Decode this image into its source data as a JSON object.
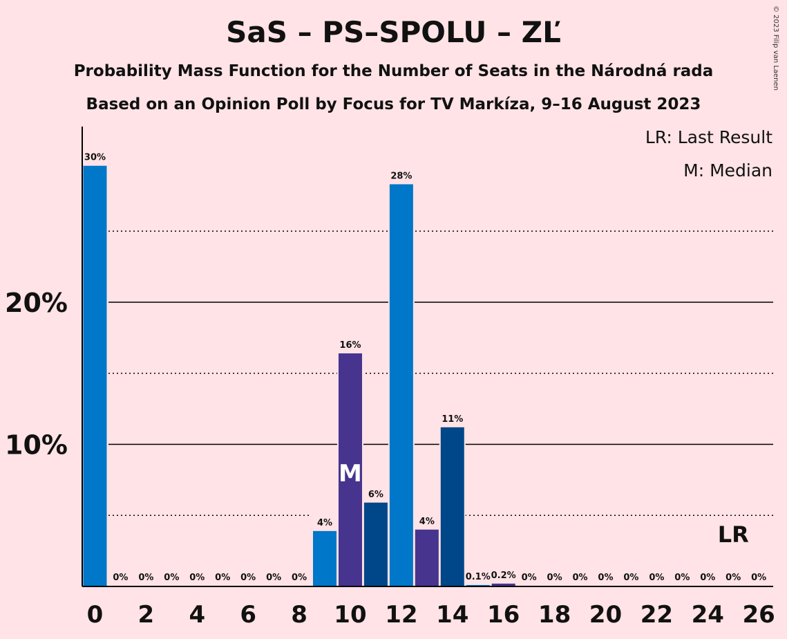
{
  "chart_data": {
    "type": "bar",
    "title": "SaS – PS–SPOLU – ZĽ",
    "subtitle_1": "Probability Mass Function for the Number of Seats in the Národná rada",
    "subtitle_2": "Based on an Opinion Poll by Focus for TV Markíza, 9–16 August 2023",
    "legend": [
      "LR: Last Result",
      "M: Median"
    ],
    "copyright": "© 2023 Filip van Laenen",
    "x": [
      0,
      1,
      2,
      3,
      4,
      5,
      6,
      7,
      8,
      9,
      10,
      11,
      12,
      13,
      14,
      15,
      16,
      17,
      18,
      19,
      20,
      21,
      22,
      23,
      24,
      25,
      26
    ],
    "values": [
      29.6,
      0,
      0,
      0,
      0,
      0,
      0,
      0,
      0,
      3.9,
      16.4,
      5.9,
      28.3,
      4.0,
      11.2,
      0.1,
      0.2,
      0,
      0,
      0,
      0,
      0,
      0,
      0,
      0,
      0,
      0
    ],
    "labels": [
      "30%",
      "0%",
      "0%",
      "0%",
      "0%",
      "0%",
      "0%",
      "0%",
      "0%",
      "4%",
      "16%",
      "6%",
      "28%",
      "4%",
      "11%",
      "0.1%",
      "0.2%",
      "0%",
      "0%",
      "0%",
      "0%",
      "0%",
      "0%",
      "0%",
      "0%",
      "0%",
      "0%"
    ],
    "bar_colors": [
      "#0077C8",
      "#0077C8",
      "#0077C8",
      "#0077C8",
      "#0077C8",
      "#0077C8",
      "#0077C8",
      "#0077C8",
      "#0077C8",
      "#0077C8",
      "#46348E",
      "#00478A",
      "#0077C8",
      "#46348E",
      "#00478A",
      "#0077C8",
      "#46348E",
      "#00478A",
      "#0077C8",
      "#46348E",
      "#00478A",
      "#0077C8",
      "#46348E",
      "#00478A",
      "#0077C8",
      "#46348E",
      "#00478A"
    ],
    "x_tick_labels": [
      "0",
      "2",
      "4",
      "6",
      "8",
      "10",
      "12",
      "14",
      "16",
      "18",
      "20",
      "22",
      "24",
      "26"
    ],
    "y_ticks": [
      {
        "value": 10,
        "label": "10%"
      },
      {
        "value": 20,
        "label": "20%"
      }
    ],
    "y_minor_gridlines": [
      5,
      15,
      25
    ],
    "ylim": [
      0,
      32
    ],
    "median_seat": 10,
    "median_label": "M",
    "last_result_seat": 25,
    "last_result_label": "LR",
    "grid": true
  }
}
